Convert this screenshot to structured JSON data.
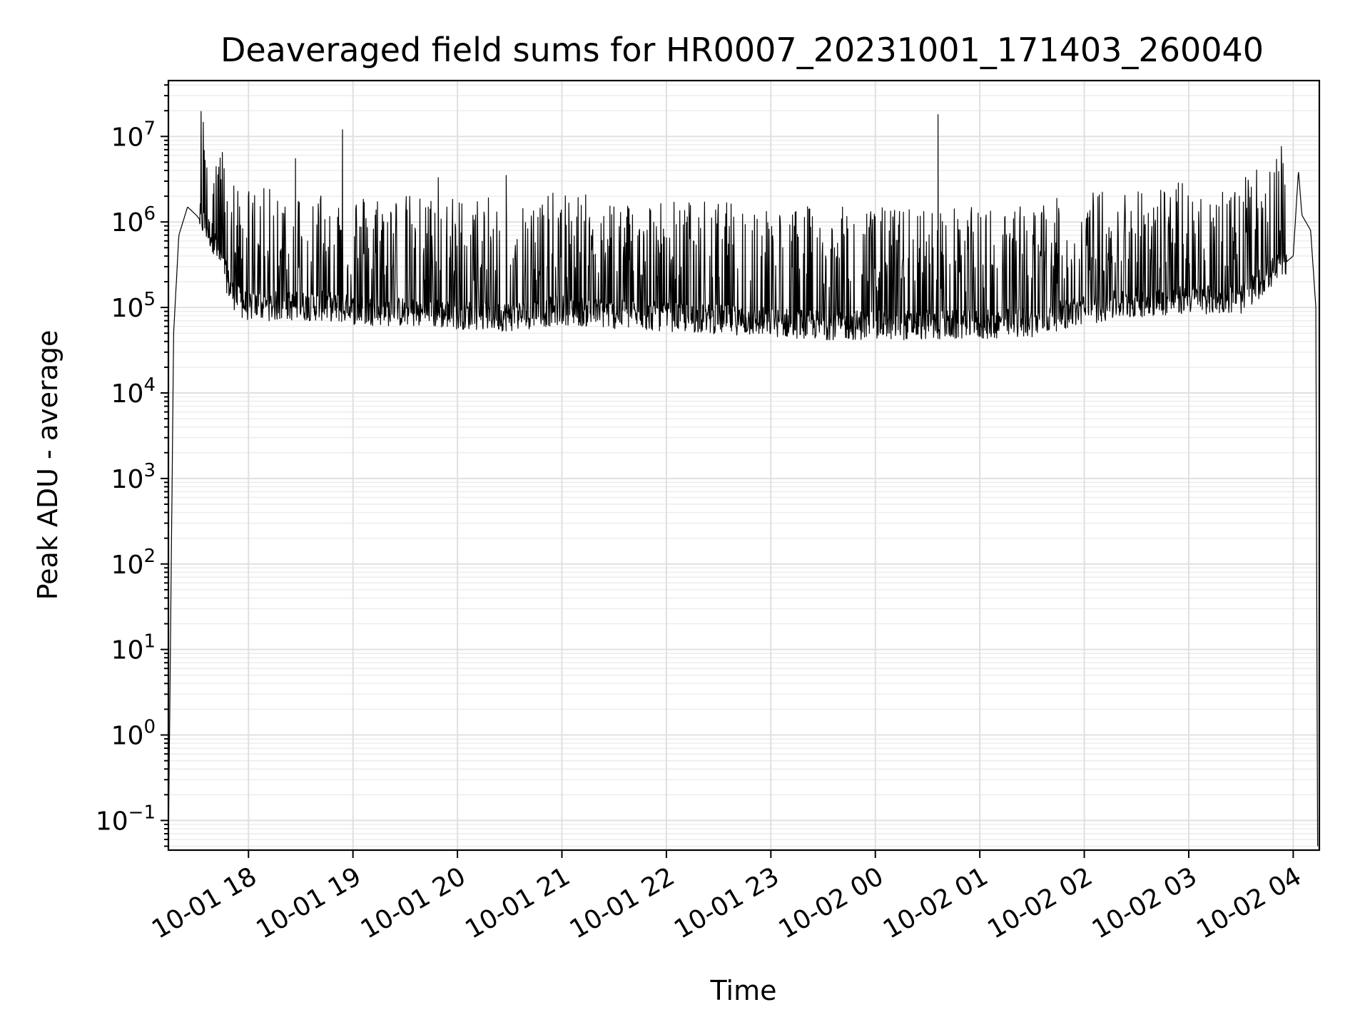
{
  "chart_data": {
    "type": "line",
    "title": "Deaveraged field sums for HR0007_20231001_171403_260040",
    "xlabel": "Time",
    "ylabel": "Peak ADU - average",
    "yscale": "log",
    "xlim": [
      "2023-10-01 17:14:00",
      "2023-10-02 04:15:00"
    ],
    "ylim": [
      0.045,
      45000000
    ],
    "grid": true,
    "grid_minor": true,
    "line_color": "#000000",
    "x_ticks": [
      "10-01 18",
      "10-01 19",
      "10-01 20",
      "10-01 21",
      "10-01 22",
      "10-01 23",
      "10-02 00",
      "10-02 01",
      "10-02 02",
      "10-02 03",
      "10-02 04"
    ],
    "x_tick_times": [
      "2023-10-01 18:00",
      "2023-10-01 19:00",
      "2023-10-01 20:00",
      "2023-10-01 21:00",
      "2023-10-01 22:00",
      "2023-10-01 23:00",
      "2023-10-02 00:00",
      "2023-10-02 01:00",
      "2023-10-02 02:00",
      "2023-10-02 03:00",
      "2023-10-02 04:00"
    ],
    "y_tick_exponents": [
      -1,
      0,
      1,
      2,
      3,
      4,
      5,
      6,
      7
    ],
    "y_tick_base": "10",
    "series": [
      {
        "x": [
          "2023-10-01 17:14",
          "2023-10-01 17:17",
          "2023-10-01 17:20",
          "2023-10-01 17:25",
          "2023-10-01 17:30",
          "2023-10-01 17:35",
          "2023-10-01 17:40",
          "2023-10-01 17:45",
          "2023-10-01 17:50",
          "2023-10-01 17:55",
          "2023-10-01 18:00",
          "2023-10-01 18:15",
          "2023-10-01 18:27",
          "2023-10-01 18:30",
          "2023-10-01 18:45",
          "2023-10-01 18:54",
          "2023-10-01 19:00",
          "2023-10-01 19:30",
          "2023-10-01 19:49",
          "2023-10-01 20:00",
          "2023-10-01 20:30",
          "2023-10-01 20:28",
          "2023-10-01 21:00",
          "2023-10-01 21:30",
          "2023-10-01 22:00",
          "2023-10-01 22:30",
          "2023-10-01 23:00",
          "2023-10-01 23:30",
          "2023-10-02 00:00",
          "2023-10-02 00:30",
          "2023-10-02 00:36",
          "2023-10-02 01:00",
          "2023-10-02 01:30",
          "2023-10-02 02:00",
          "2023-10-02 02:30",
          "2023-10-02 03:00",
          "2023-10-02 03:30",
          "2023-10-02 04:00",
          "2023-10-02 04:03",
          "2023-10-02 04:05",
          "2023-10-02 04:10",
          "2023-10-02 04:13",
          "2023-10-02 04:14"
        ],
        "values": [
          0.05,
          50000,
          700000,
          1500000,
          1200000,
          900000,
          600000,
          300000,
          150000,
          110000,
          100000,
          100000,
          5500000,
          100000,
          100000,
          12000000,
          90000,
          85000,
          3300000,
          80000,
          75000,
          3500000,
          90000,
          80000,
          75000,
          70000,
          65000,
          60000,
          60000,
          60000,
          18000000,
          60000,
          65000,
          90000,
          110000,
          120000,
          120000,
          400000,
          4000000,
          1200000,
          800000,
          100000,
          0.05
        ]
      }
    ]
  }
}
